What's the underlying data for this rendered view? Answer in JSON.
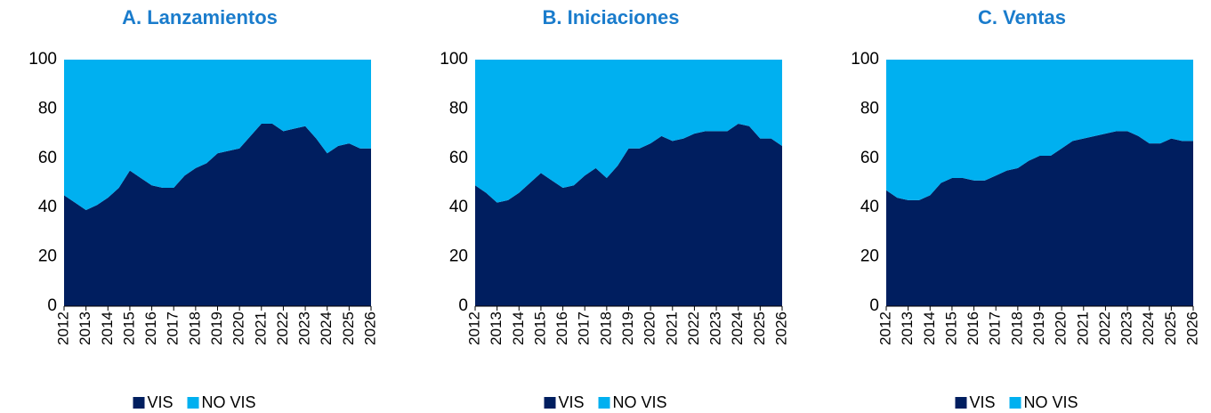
{
  "chart_data": [
    {
      "type": "area",
      "stacked": true,
      "title": "A. Lanzamientos",
      "x": [
        2012,
        2012.5,
        2013,
        2013.5,
        2014,
        2014.5,
        2015,
        2015.5,
        2016,
        2016.5,
        2017,
        2017.5,
        2018,
        2018.5,
        2019,
        2019.5,
        2020,
        2020.5,
        2021,
        2021.5,
        2022,
        2022.5,
        2023,
        2023.5,
        2024,
        2024.5,
        2025,
        2025.5,
        2026
      ],
      "series": [
        {
          "name": "VIS",
          "color": "#001e5f",
          "values": [
            45,
            42,
            39,
            41,
            44,
            48,
            55,
            52,
            49,
            48,
            48,
            53,
            56,
            58,
            62,
            63,
            64,
            69,
            74,
            74,
            71,
            72,
            73,
            68,
            62,
            65,
            66,
            64,
            64
          ]
        },
        {
          "name": "NO VIS",
          "color": "#00b0f0",
          "values": [
            55,
            58,
            61,
            59,
            56,
            52,
            45,
            48,
            51,
            52,
            52,
            47,
            44,
            42,
            38,
            37,
            36,
            31,
            26,
            26,
            29,
            28,
            27,
            32,
            38,
            35,
            34,
            36,
            36
          ]
        }
      ],
      "xlim": [
        2012,
        2026
      ],
      "xticks": [
        2012,
        2013,
        2014,
        2015,
        2016,
        2017,
        2018,
        2019,
        2020,
        2021,
        2022,
        2023,
        2024,
        2025,
        2026
      ],
      "ylim": [
        0,
        100
      ],
      "yticks": [
        0,
        20,
        40,
        60,
        80,
        100
      ],
      "legend": "bottom"
    },
    {
      "type": "area",
      "stacked": true,
      "title": "B. Iniciaciones",
      "x": [
        2012,
        2012.5,
        2013,
        2013.5,
        2014,
        2014.5,
        2015,
        2015.5,
        2016,
        2016.5,
        2017,
        2017.5,
        2018,
        2018.5,
        2019,
        2019.5,
        2020,
        2020.5,
        2021,
        2021.5,
        2022,
        2022.5,
        2023,
        2023.5,
        2024,
        2024.5,
        2025,
        2025.5,
        2026
      ],
      "series": [
        {
          "name": "VIS",
          "color": "#001e5f",
          "values": [
            49,
            46,
            42,
            43,
            46,
            50,
            54,
            51,
            48,
            49,
            53,
            56,
            52,
            57,
            64,
            64,
            66,
            69,
            67,
            68,
            70,
            71,
            71,
            71,
            74,
            73,
            68,
            68,
            65
          ]
        },
        {
          "name": "NO VIS",
          "color": "#00b0f0",
          "values": [
            51,
            54,
            58,
            57,
            54,
            50,
            46,
            49,
            52,
            51,
            47,
            44,
            48,
            43,
            36,
            36,
            34,
            31,
            33,
            32,
            30,
            29,
            29,
            29,
            26,
            27,
            32,
            32,
            35
          ]
        }
      ],
      "xlim": [
        2012,
        2026
      ],
      "xticks": [
        2012,
        2013,
        2014,
        2015,
        2016,
        2017,
        2018,
        2019,
        2020,
        2021,
        2022,
        2023,
        2024,
        2025,
        2026
      ],
      "ylim": [
        0,
        100
      ],
      "yticks": [
        0,
        20,
        40,
        60,
        80,
        100
      ],
      "legend": "bottom"
    },
    {
      "type": "area",
      "stacked": true,
      "title": "C. Ventas",
      "x": [
        2012,
        2012.5,
        2013,
        2013.5,
        2014,
        2014.5,
        2015,
        2015.5,
        2016,
        2016.5,
        2017,
        2017.5,
        2018,
        2018.5,
        2019,
        2019.5,
        2020,
        2020.5,
        2021,
        2021.5,
        2022,
        2022.5,
        2023,
        2023.5,
        2024,
        2024.5,
        2025,
        2025.5,
        2026
      ],
      "series": [
        {
          "name": "VIS",
          "color": "#001e5f",
          "values": [
            47,
            44,
            43,
            43,
            45,
            50,
            52,
            52,
            51,
            51,
            53,
            55,
            56,
            59,
            61,
            61,
            64,
            67,
            68,
            69,
            70,
            71,
            71,
            69,
            66,
            66,
            68,
            67,
            67
          ]
        },
        {
          "name": "NO VIS",
          "color": "#00b0f0",
          "values": [
            53,
            56,
            57,
            57,
            55,
            50,
            48,
            48,
            49,
            49,
            47,
            45,
            44,
            41,
            39,
            39,
            36,
            33,
            32,
            31,
            30,
            29,
            29,
            31,
            34,
            34,
            32,
            33,
            33
          ]
        }
      ],
      "xlim": [
        2012,
        2026
      ],
      "xticks": [
        2012,
        2013,
        2014,
        2015,
        2016,
        2017,
        2018,
        2019,
        2020,
        2021,
        2022,
        2023,
        2024,
        2025,
        2026
      ],
      "ylim": [
        0,
        100
      ],
      "yticks": [
        0,
        20,
        40,
        60,
        80,
        100
      ],
      "legend": "bottom"
    }
  ]
}
